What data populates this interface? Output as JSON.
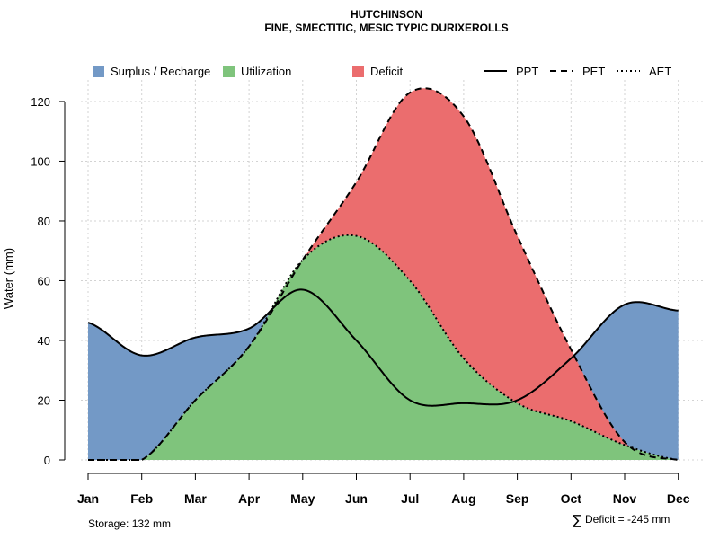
{
  "chart_data": {
    "type": "area",
    "title": "HUTCHINSON",
    "subtitle": "FINE, SMECTITIC, MESIC TYPIC DURIXEROLLS",
    "ylabel": "Water (mm)",
    "xlabel": "",
    "ylim": [
      0,
      126
    ],
    "yticks": [
      0,
      20,
      40,
      60,
      80,
      100,
      120
    ],
    "grid": true,
    "categories": [
      "Jan",
      "Feb",
      "Mar",
      "Apr",
      "May",
      "Jun",
      "Jul",
      "Aug",
      "Sep",
      "Oct",
      "Nov",
      "Dec"
    ],
    "series": [
      {
        "name": "PPT",
        "style": "solid",
        "values": [
          46,
          35,
          41,
          44,
          57,
          40,
          20,
          19,
          20,
          34,
          52,
          50
        ]
      },
      {
        "name": "PET",
        "style": "dashed",
        "values": [
          0,
          0,
          20,
          38,
          67,
          93,
          123,
          115,
          75,
          37,
          6,
          0
        ]
      },
      {
        "name": "AET",
        "style": "dotted",
        "values": [
          0,
          0,
          20,
          38,
          67,
          75,
          60,
          34,
          19,
          13,
          5,
          0
        ]
      }
    ],
    "areas": [
      {
        "name": "Surplus / Recharge",
        "color": "#7399C6"
      },
      {
        "name": "Utilization",
        "color": "#7FC47C"
      },
      {
        "name": "Deficit",
        "color": "#EB6D6E"
      }
    ],
    "legend": {
      "position": "top",
      "areas": [
        "Surplus / Recharge",
        "Utilization",
        "Deficit"
      ],
      "lines": [
        "PPT",
        "PET",
        "AET"
      ]
    },
    "storage_label": "Storage: 132 mm",
    "deficit_label": "Deficit = -245 mm",
    "sigma": "∑"
  }
}
